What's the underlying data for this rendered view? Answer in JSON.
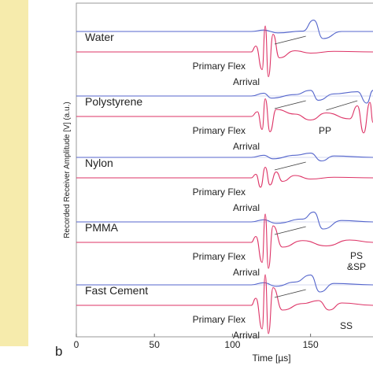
{
  "figure": {
    "panel_letter": "b",
    "left_panel_color": "#f6ebac"
  },
  "chart_data": {
    "type": "line",
    "ylabel": "Recorded Receiver Amplitude [V]  (a.u.)",
    "xlabel": "Time  [µs]",
    "xlim": [
      0,
      190
    ],
    "xticks": [
      0,
      50,
      100,
      150
    ],
    "grid": false,
    "colors": {
      "blue_trace": "#5566cc",
      "red_trace": "#dd3366",
      "annotation_line": "#444444"
    },
    "panels": [
      {
        "material": "Water",
        "trace_labels": [
          "Primary Flex",
          "Arrival"
        ],
        "annotations": [],
        "blue": {
          "t0": 112,
          "x": [
            120,
            129,
            145,
            152,
            158,
            170
          ],
          "y": [
            2,
            -2,
            0.5,
            16,
            -10,
            0
          ]
        },
        "red": {
          "t0": 112,
          "x": [
            115,
            119,
            121,
            123,
            126,
            130,
            140,
            150,
            165,
            190
          ],
          "y": [
            10,
            -30,
            44,
            -42,
            30,
            -10,
            2,
            -2,
            1,
            0
          ]
        }
      },
      {
        "material": "Polystyrene",
        "trace_labels": [
          "Primary Flex",
          "Arrival"
        ],
        "annotations": [
          "PP"
        ],
        "blue": {
          "t0": 112,
          "x": [
            120,
            125,
            140,
            150,
            155,
            165,
            180,
            186,
            190
          ],
          "y": [
            4,
            -3,
            2,
            8,
            -6,
            3,
            6,
            -10,
            8
          ]
        },
        "red": {
          "t0": 112,
          "x": [
            116,
            119,
            121,
            124,
            128,
            140,
            150,
            160,
            175,
            180,
            184,
            188,
            190
          ],
          "y": [
            8,
            -22,
            30,
            -26,
            12,
            4,
            -6,
            6,
            -4,
            18,
            -28,
            24,
            -10
          ]
        }
      },
      {
        "material": "Nylon",
        "trace_labels": [
          "Primary Flex",
          "Arrival"
        ],
        "annotations": [],
        "blue": {
          "t0": 112,
          "x": [
            120,
            126,
            140,
            150,
            157,
            165,
            190
          ],
          "y": [
            3,
            -2,
            3,
            6,
            -5,
            2,
            0
          ]
        },
        "red": {
          "t0": 112,
          "x": [
            115,
            118,
            121,
            124,
            128,
            132,
            140,
            150,
            165,
            190
          ],
          "y": [
            6,
            -16,
            18,
            -12,
            10,
            -6,
            4,
            -2,
            1,
            0
          ]
        }
      },
      {
        "material": "PMMA",
        "trace_labels": [
          "Primary Flex",
          "Arrival"
        ],
        "annotations": [
          "PS",
          "&SP"
        ],
        "blue": {
          "t0": 112,
          "x": [
            120,
            128,
            145,
            152,
            158,
            170,
            190
          ],
          "y": [
            3,
            -2,
            4,
            14,
            -10,
            2,
            0
          ]
        },
        "red": {
          "t0": 112,
          "x": [
            115,
            119,
            121,
            123,
            126,
            132,
            145,
            160,
            175,
            190
          ],
          "y": [
            10,
            -34,
            48,
            -44,
            28,
            -8,
            3,
            -6,
            4,
            0
          ]
        }
      },
      {
        "material": "Fast Cement",
        "trace_labels": [
          "Primary Flex",
          "Arrival"
        ],
        "annotations": [
          "SS"
        ],
        "blue": {
          "t0": 112,
          "x": [
            120,
            128,
            140,
            150,
            156,
            165,
            190
          ],
          "y": [
            3,
            -2,
            4,
            14,
            -10,
            2,
            0
          ]
        },
        "red": {
          "t0": 112,
          "x": [
            115,
            119,
            121,
            123,
            126,
            132,
            145,
            155,
            162,
            170,
            190
          ],
          "y": [
            12,
            -40,
            52,
            -48,
            30,
            -8,
            3,
            8,
            -8,
            4,
            0
          ]
        }
      }
    ]
  }
}
